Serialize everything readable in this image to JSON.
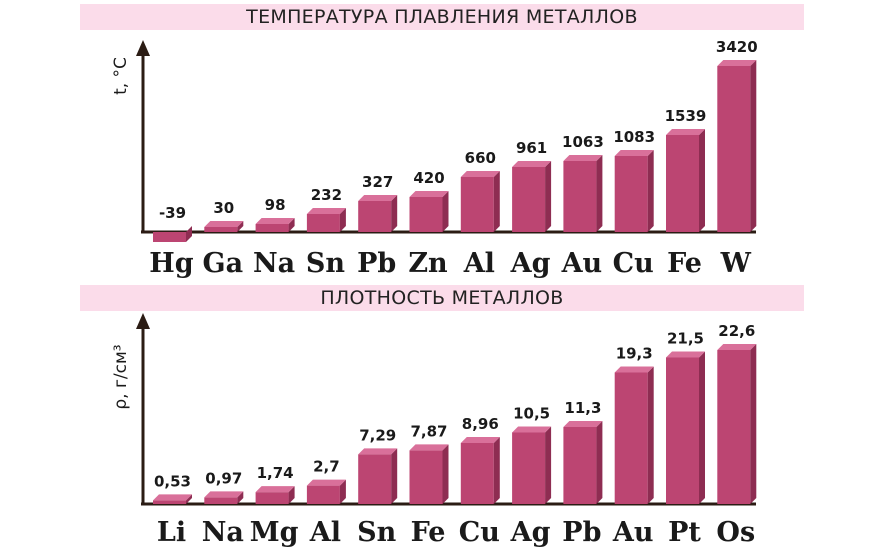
{
  "chart_data": [
    {
      "type": "bar",
      "title": "ТЕМПЕРАТУРА ПЛАВЛЕНИЯ МЕТАЛЛОВ",
      "ylabel": "t, °C",
      "categories": [
        "Hg",
        "Ga",
        "Na",
        "Sn",
        "Pb",
        "Zn",
        "Al",
        "Ag",
        "Au",
        "Cu",
        "Fe",
        "W"
      ],
      "values": [
        -39,
        30,
        98,
        232,
        327,
        420,
        660,
        961,
        1063,
        1083,
        1539,
        3420
      ],
      "value_labels": [
        "-39",
        "30",
        "98",
        "232",
        "327",
        "420",
        "660",
        "961",
        "1063",
        "1083",
        "1539",
        "3420"
      ],
      "scale": "nonlinear",
      "grid": false,
      "legend": "none",
      "bar_color": "#bc4572"
    },
    {
      "type": "bar",
      "title": "ПЛОТНОСТЬ МЕТАЛЛОВ",
      "ylabel": "ρ, г/см³",
      "categories": [
        "Li",
        "Na",
        "Mg",
        "Al",
        "Sn",
        "Fe",
        "Cu",
        "Ag",
        "Pb",
        "Au",
        "Pt",
        "Os"
      ],
      "values": [
        0.53,
        0.97,
        1.74,
        2.7,
        7.29,
        7.87,
        8.96,
        10.5,
        11.3,
        19.3,
        21.5,
        22.6
      ],
      "value_labels": [
        "0,53",
        "0,97",
        "1,74",
        "2,7",
        "7,29",
        "7,87",
        "8,96",
        "10,5",
        "11,3",
        "19,3",
        "21,5",
        "22,6"
      ],
      "scale": "linear",
      "ylim": [
        0,
        22.6
      ],
      "grid": false,
      "legend": "none",
      "bar_color": "#bc4572"
    }
  ],
  "colors": {
    "banner": "#fbdcea",
    "bar_front": "#bc4572",
    "bar_side": "#8e2d52",
    "bar_top": "#d9709a",
    "axis": "#2b1c14"
  }
}
